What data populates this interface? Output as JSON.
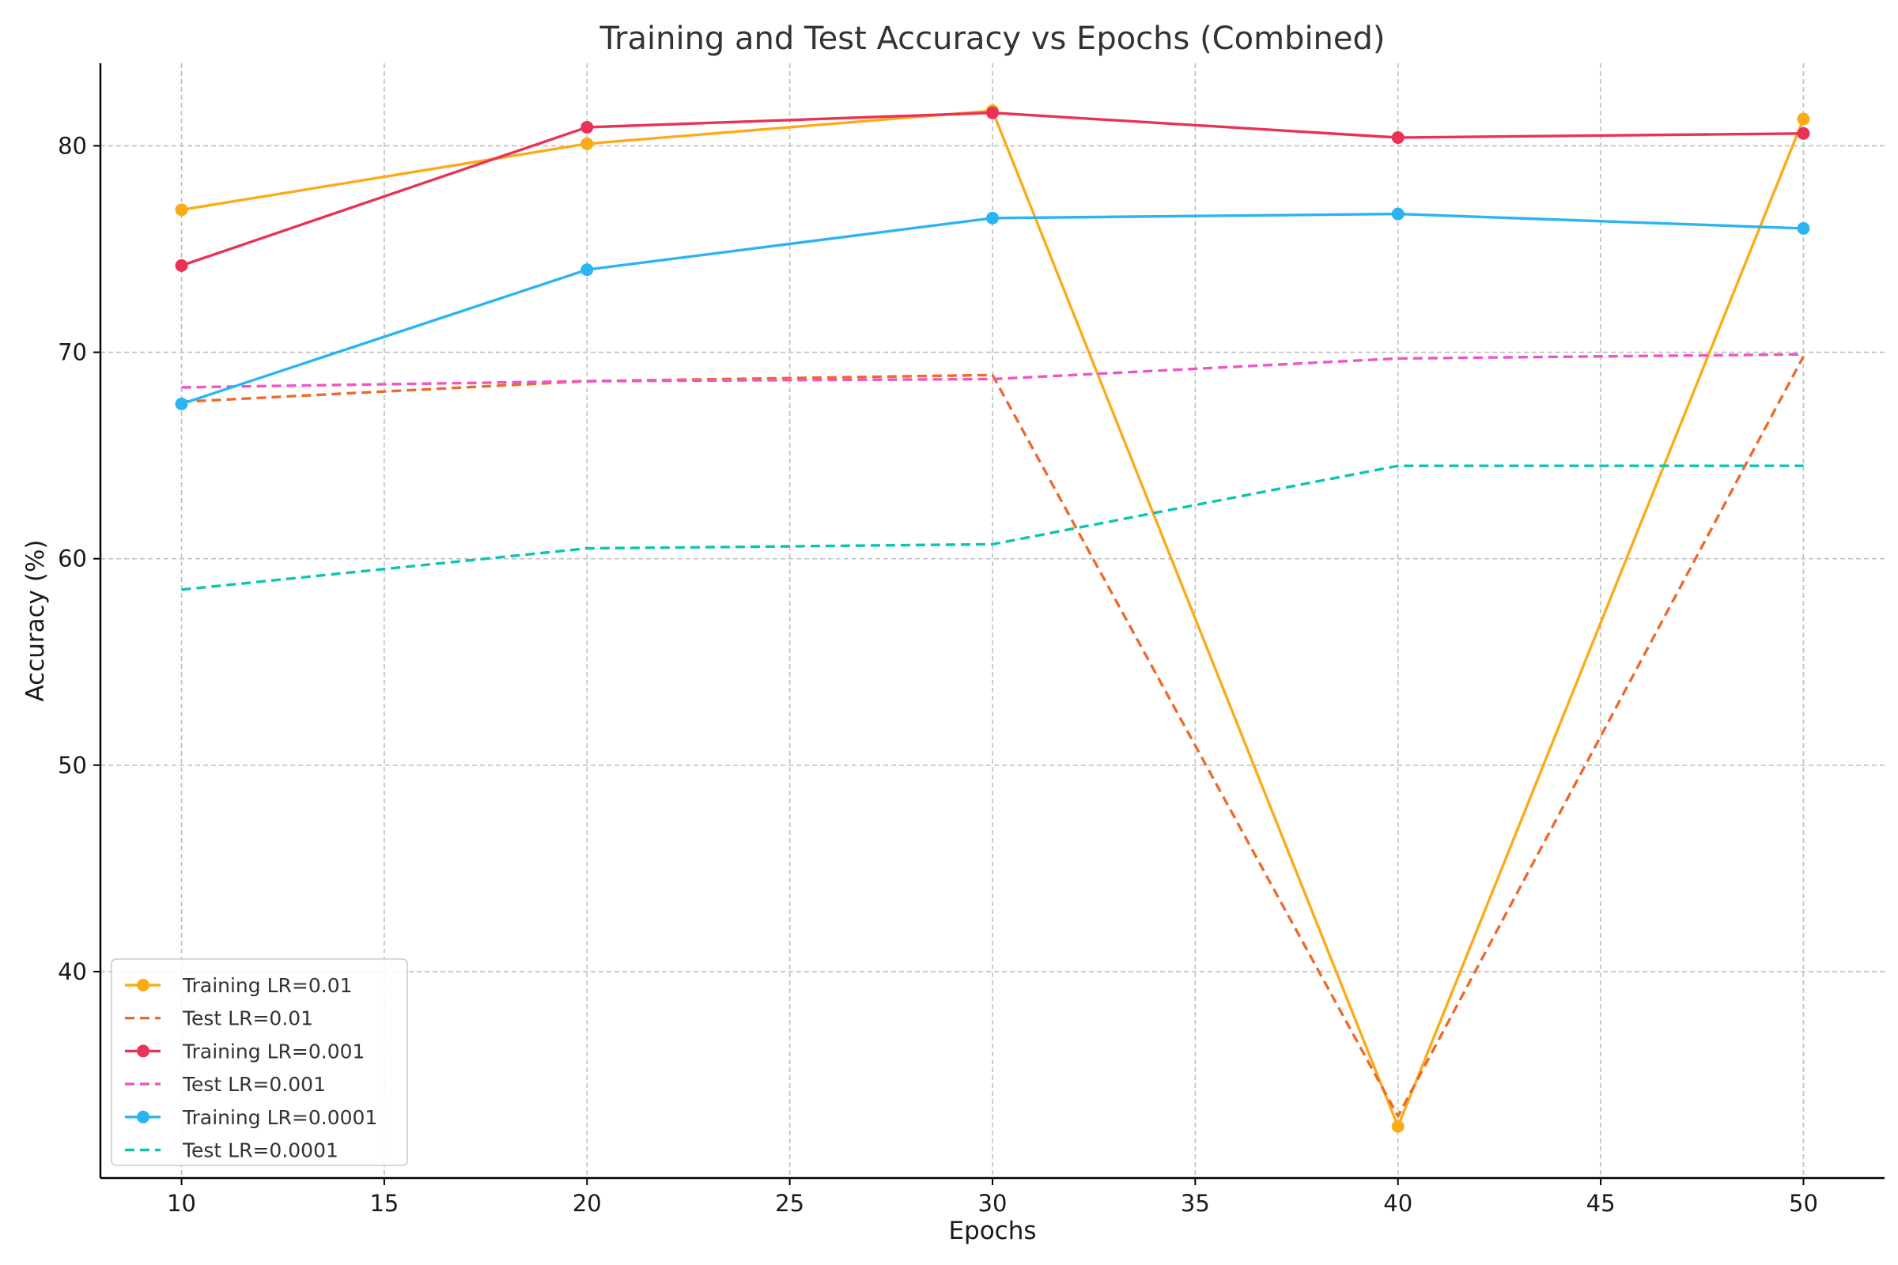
{
  "chart_data": {
    "type": "line",
    "title": "Training and Test Accuracy vs Epochs (Combined)",
    "xlabel": "Epochs",
    "ylabel": "Accuracy (%)",
    "xlim": [
      8,
      52
    ],
    "ylim": [
      30,
      84
    ],
    "xticks": [
      10,
      15,
      20,
      25,
      30,
      35,
      40,
      45,
      50
    ],
    "yticks": [
      40,
      50,
      60,
      70,
      80
    ],
    "grid": true,
    "legend_position": "lower-left",
    "x": [
      10,
      20,
      30,
      40,
      50
    ],
    "series": [
      {
        "name": "Training LR=0.01",
        "values": [
          76.9,
          80.1,
          81.7,
          32.5,
          81.3
        ],
        "color": "#fbab18",
        "style": "solid",
        "marker": true
      },
      {
        "name": "Test LR=0.01",
        "values": [
          67.6,
          68.6,
          68.9,
          33.0,
          69.8
        ],
        "color": "#ed6a2a",
        "style": "dashed",
        "marker": false
      },
      {
        "name": "Training LR=0.001",
        "values": [
          74.2,
          80.9,
          81.6,
          80.4,
          80.6
        ],
        "color": "#e83256",
        "style": "solid",
        "marker": true
      },
      {
        "name": "Test LR=0.001",
        "values": [
          68.3,
          68.6,
          68.7,
          69.7,
          69.9
        ],
        "color": "#f154c7",
        "style": "dashed",
        "marker": false
      },
      {
        "name": "Training LR=0.0001",
        "values": [
          67.5,
          74.0,
          76.5,
          76.7,
          76.0
        ],
        "color": "#2ab4f2",
        "style": "solid",
        "marker": true
      },
      {
        "name": "Test LR=0.0001",
        "values": [
          58.5,
          60.5,
          60.7,
          64.5,
          64.5
        ],
        "color": "#0cc4b4",
        "style": "dashed",
        "marker": false
      }
    ]
  }
}
